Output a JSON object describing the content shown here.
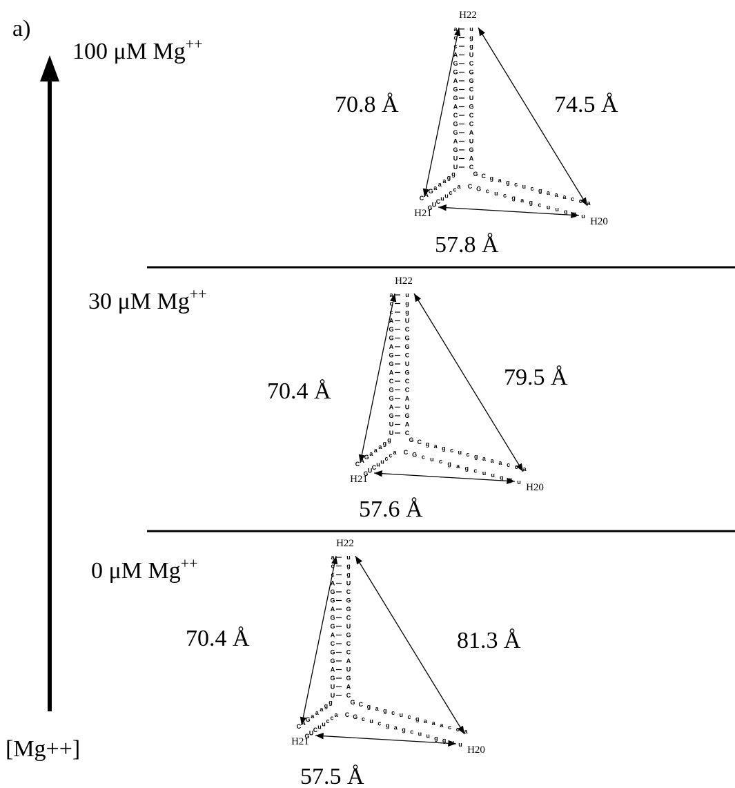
{
  "figure_label": "a)",
  "axis_label": "[Mg++]",
  "panels": [
    {
      "condition": {
        "text": "100 μM Mg",
        "superscript": "++"
      },
      "helix_labels": {
        "top": "H22",
        "left": "H21",
        "right": "H20"
      },
      "distances": {
        "left": "70.8 Å",
        "right": "74.5 Å",
        "bottom": "57.8 Å"
      },
      "rna": [
        "accAGGAGGACGGAGUU",
        "uggUCGGCUGCCAUGAC",
        "ggaaaGAC",
        "accuuCUG",
        "GCgagcucgaaacca",
        "CGcucgagcuuggu"
      ]
    },
    {
      "condition": {
        "text": "30 μM Mg",
        "superscript": "++"
      },
      "helix_labels": {
        "top": "H22",
        "left": "H21",
        "right": "H20"
      },
      "distances": {
        "left": "70.4 Å",
        "right": "79.5 Å",
        "bottom": "57.6 Å"
      },
      "rna": [
        "accAGGAGGACGGAGUU",
        "uggUCGGCUGCCAUGAC",
        "ggaaaGAC",
        "accuuCUG",
        "GCgagcucgaaacca",
        "CGcucgagcuuggu"
      ]
    },
    {
      "condition": {
        "text": "0 μM Mg",
        "superscript": "++"
      },
      "helix_labels": {
        "top": "H22",
        "left": "H21",
        "right": "H20"
      },
      "distances": {
        "left": "70.4 Å",
        "right": "81.3 Å",
        "bottom": "57.5 Å"
      },
      "rna": [
        "accAGGAGGACGGAGUU",
        "uggUCGGCUGCCAUGAC",
        "ggaaaGAC",
        "accuuCUG",
        "GCgagcucgaaacca",
        "CGcucgagcuugguu"
      ]
    }
  ]
}
